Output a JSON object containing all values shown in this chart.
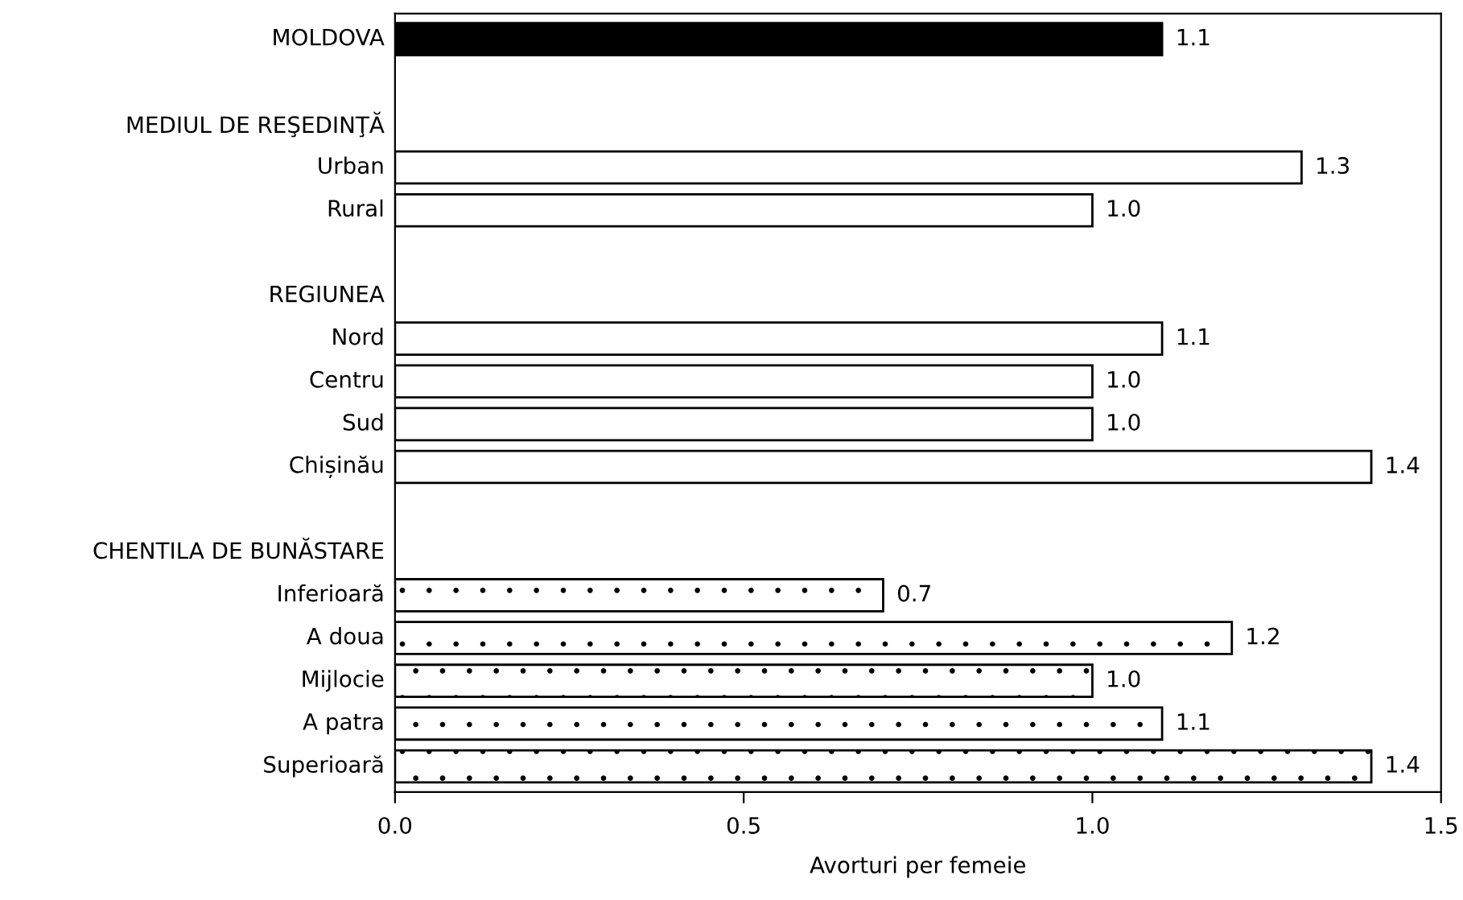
{
  "chart_data": {
    "type": "bar",
    "orientation": "horizontal",
    "xlabel": "Avorturi per femeie",
    "categories": [
      "MOLDOVA",
      null,
      "MEDIUL DE REŞEDINŢĂ",
      "Urban",
      "Rural",
      null,
      "REGIUNEA",
      "Nord",
      "Centru",
      "Sud",
      "Chișinău",
      null,
      "CHENTILA DE BUNĂSTARE",
      "Inferioară",
      "A doua",
      "Mijlocie",
      "A patra",
      "Superioară"
    ],
    "values": [
      1.1,
      null,
      null,
      1.3,
      1.0,
      null,
      null,
      1.1,
      1.0,
      1.0,
      1.4,
      null,
      null,
      0.7,
      1.2,
      1.0,
      1.1,
      1.4
    ],
    "value_labels": [
      "1.1",
      null,
      null,
      "1.3",
      "1.0",
      null,
      null,
      "1.1",
      "1.0",
      "1.0",
      "1.4",
      null,
      null,
      "0.7",
      "1.2",
      "1.0",
      "1.1",
      "1.4"
    ],
    "colors": [
      "#000000",
      null,
      null,
      "#ffffff",
      "#ffffff",
      null,
      null,
      "#ffffff",
      "#ffffff",
      "#ffffff",
      "#ffffff",
      null,
      null,
      "#ffffff",
      "#ffffff",
      "#ffffff",
      "#ffffff",
      "#ffffff"
    ],
    "xlim": [
      0,
      1.5
    ],
    "xticks": [
      {
        "value": 0,
        "label": "0.0"
      },
      {
        "value": 0.5,
        "label": "0.5"
      },
      {
        "value": 1.0,
        "label": "1.0"
      },
      {
        "value": 1.5,
        "label": "1.5"
      }
    ],
    "tick_labels": "x",
    "grid": false,
    "legend": false
  }
}
